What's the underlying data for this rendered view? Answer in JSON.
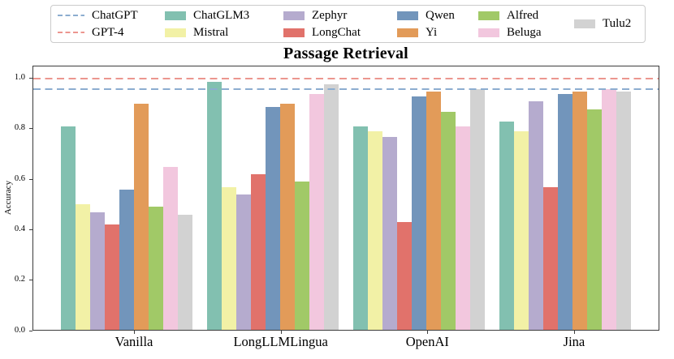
{
  "title": "Passage Retrieval",
  "ylabel": "Accuracy",
  "legend": {
    "columns": [
      [
        {
          "label": "ChatGPT",
          "type": "line",
          "color": "#8cadd0"
        },
        {
          "label": "GPT-4",
          "type": "line",
          "color": "#ec968f"
        }
      ],
      [
        {
          "label": "ChatGLM3",
          "type": "patch",
          "color": "#82c0b0"
        },
        {
          "label": "Mistral",
          "type": "patch",
          "color": "#f2f1a6"
        }
      ],
      [
        {
          "label": "Zephyr",
          "type": "patch",
          "color": "#b5abce"
        },
        {
          "label": "LongChat",
          "type": "patch",
          "color": "#e1726b"
        }
      ],
      [
        {
          "label": "Qwen",
          "type": "patch",
          "color": "#7295bb"
        },
        {
          "label": "Yi",
          "type": "patch",
          "color": "#e29b59"
        }
      ],
      [
        {
          "label": "Alfred",
          "type": "patch",
          "color": "#a1c967"
        },
        {
          "label": "Beluga",
          "type": "patch",
          "color": "#f2c7de"
        }
      ],
      [
        {
          "label": "Tulu2",
          "type": "patch",
          "color": "#d2d2d2"
        }
      ]
    ]
  },
  "chart_data": {
    "type": "bar",
    "title": "Passage Retrieval",
    "xlabel": "",
    "ylabel": "Accuracy",
    "ylim": [
      0,
      1.05
    ],
    "yticks": [
      0.0,
      0.2,
      0.4,
      0.6,
      0.8,
      1.0
    ],
    "grid": false,
    "legend_position": "top",
    "categories": [
      "Vanilla",
      "LongLLMLingua",
      "OpenAI",
      "Jina"
    ],
    "series": [
      {
        "name": "ChatGLM3",
        "color": "#82c0b0",
        "values": [
          0.81,
          0.99,
          0.81,
          0.83
        ]
      },
      {
        "name": "Mistral",
        "color": "#f2f1a6",
        "values": [
          0.5,
          0.57,
          0.79,
          0.79
        ]
      },
      {
        "name": "Zephyr",
        "color": "#b5abce",
        "values": [
          0.47,
          0.54,
          0.77,
          0.91
        ]
      },
      {
        "name": "LongChat",
        "color": "#e1726b",
        "values": [
          0.42,
          0.62,
          0.43,
          0.57
        ]
      },
      {
        "name": "Qwen",
        "color": "#7295bb",
        "values": [
          0.56,
          0.89,
          0.93,
          0.94
        ]
      },
      {
        "name": "Yi",
        "color": "#e29b59",
        "values": [
          0.9,
          0.9,
          0.95,
          0.95
        ]
      },
      {
        "name": "Alfred",
        "color": "#a1c967",
        "values": [
          0.49,
          0.59,
          0.87,
          0.88
        ]
      },
      {
        "name": "Beluga",
        "color": "#f2c7de",
        "values": [
          0.65,
          0.94,
          0.81,
          0.96
        ]
      },
      {
        "name": "Tulu2",
        "color": "#d2d2d2",
        "values": [
          0.46,
          0.98,
          0.96,
          0.95
        ]
      }
    ],
    "reference_lines": [
      {
        "name": "GPT-4",
        "value": 1.0,
        "color": "#ec968f",
        "style": "dashed"
      },
      {
        "name": "ChatGPT",
        "value": 0.96,
        "color": "#8cadd0",
        "style": "dashed"
      }
    ]
  }
}
